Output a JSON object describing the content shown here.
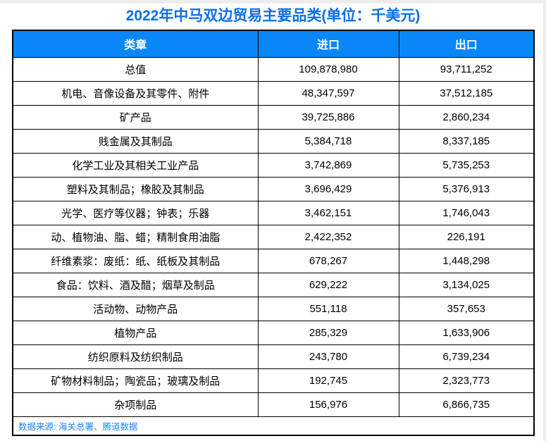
{
  "page": {
    "title": "2022年中马双边贸易主要品类(单位：千美元)"
  },
  "colors": {
    "title-color": "#0b6fe8",
    "header-bg": "#0887fa",
    "header-text": "#ffffff",
    "source-color": "#1e87f0",
    "border-color": "#000000"
  },
  "chart_data": {
    "type": "table",
    "title": "2022年中马双边贸易主要品类(单位：千美元)",
    "unit": "千美元",
    "columns": [
      "类章",
      "进口",
      "出口"
    ],
    "categories": [
      "总值",
      "机电、音像设备及其零件、附件",
      "矿产品",
      "贱金属及其制品",
      "化学工业及其相关工业产品",
      "塑料及其制品；橡胶及其制品",
      "光学、医疗等仪器；钟表；乐器",
      "动、植物油、脂、蜡；精制食用油脂",
      "纤维素浆：废纸：纸、纸板及其制品",
      "食品：饮料、酒及醋；烟草及制品",
      "活动物、动物产品",
      "植物产品",
      "纺织原料及纺织制品",
      "矿物材料制品；陶瓷品；玻璃及制品",
      "杂项制品"
    ],
    "series": [
      {
        "name": "进口",
        "values": [
          109878980,
          48347597,
          39725886,
          5384718,
          3742869,
          3696429,
          3462151,
          2422352,
          678267,
          629222,
          551118,
          285329,
          243780,
          192745,
          156976
        ]
      },
      {
        "name": "出口",
        "values": [
          93711252,
          37512185,
          2860234,
          8337185,
          5735253,
          5376913,
          1746043,
          226191,
          1448298,
          3134025,
          357653,
          1633906,
          6739234,
          2323773,
          6866735
        ]
      }
    ],
    "source_note": "数据来源: 海关总署、腾道数据"
  }
}
